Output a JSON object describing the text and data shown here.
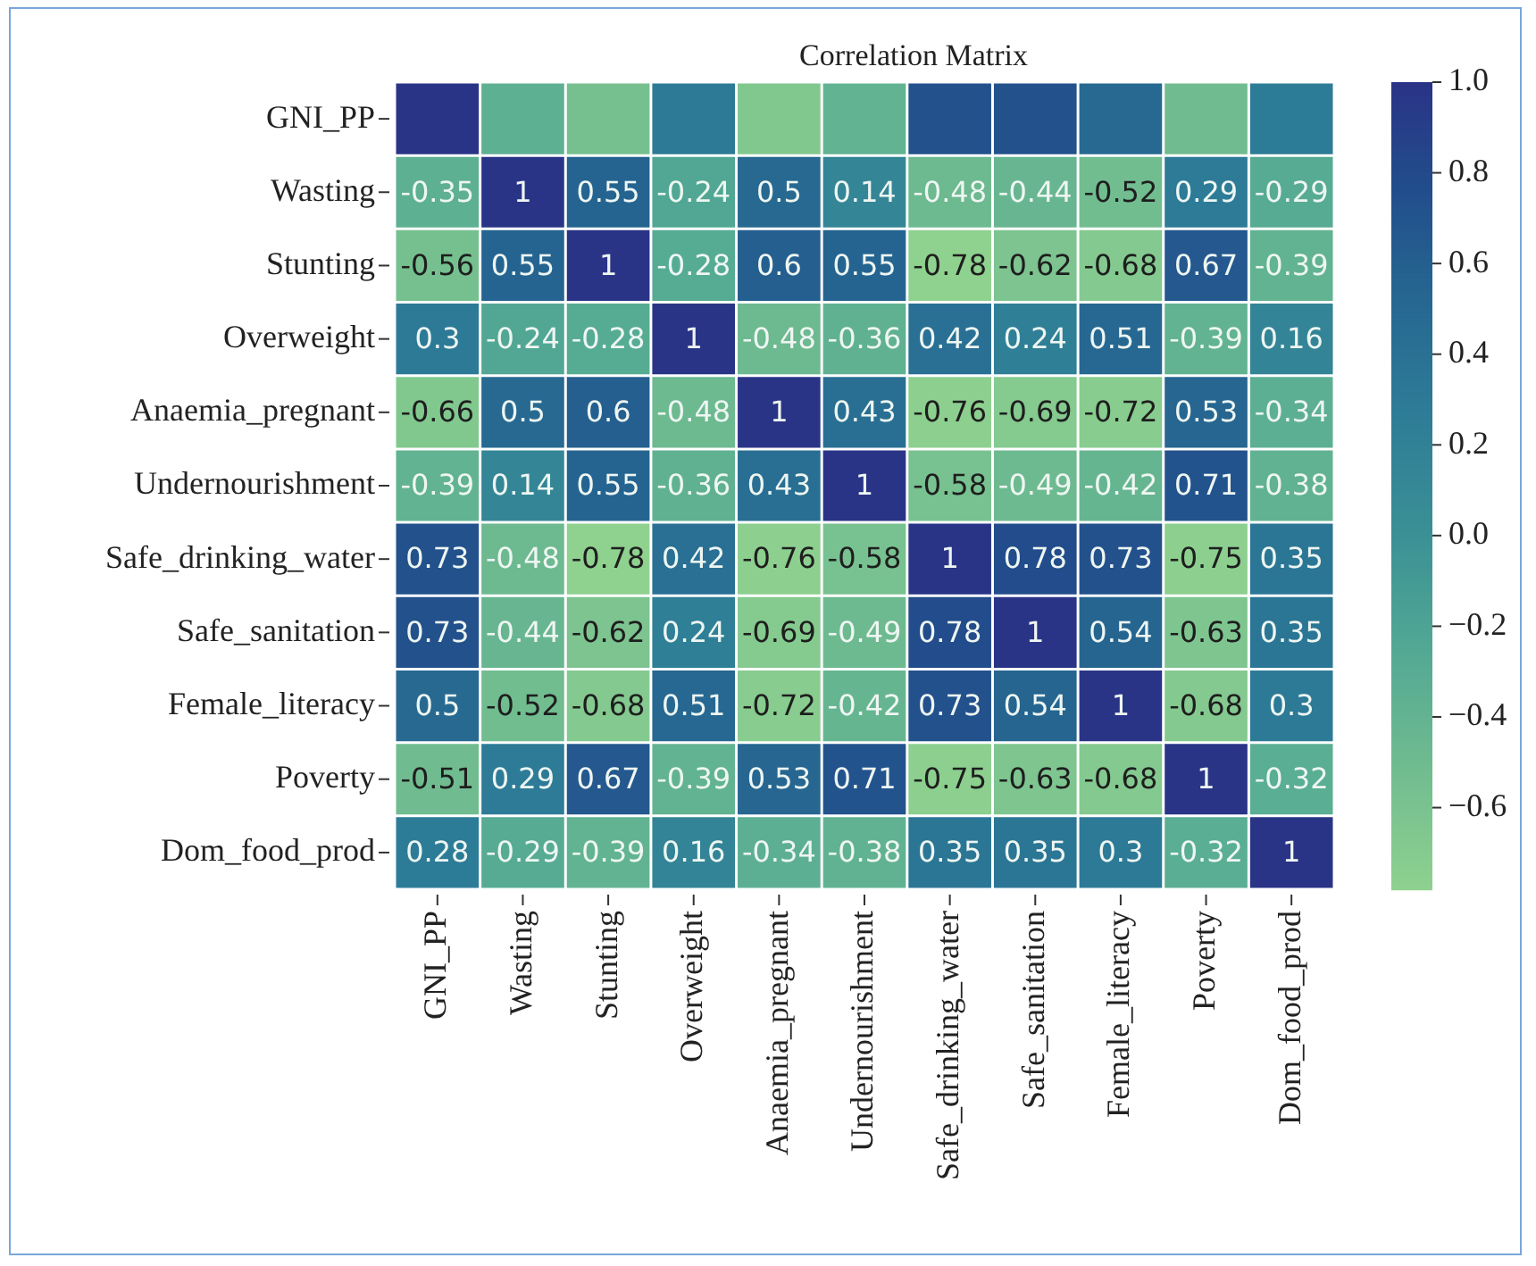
{
  "chart_data": {
    "type": "heatmap",
    "title": "Correlation Matrix",
    "categories": [
      "GNI_PP",
      "Wasting",
      "Stunting",
      "Overweight",
      "Anaemia_pregnant",
      "Undernourishment",
      "Safe_drinking_water",
      "Safe_sanitation",
      "Female_literacy",
      "Poverty",
      "Dom_food_prod"
    ],
    "y_categories": [
      "GNI_PP",
      "Wasting",
      "Stunting",
      "Overweight",
      "Anaemia_pregnant",
      "Undernourishment",
      "Safe_drinking_water",
      "Safe_sanitation",
      "Female_literacy",
      "Poverty",
      "Dom_food_prod"
    ],
    "cells": [
      [
        1,
        -0.35,
        -0.56,
        0.3,
        -0.66,
        -0.39,
        0.73,
        0.73,
        0.5,
        -0.51,
        0.28
      ],
      [
        -0.35,
        1,
        0.55,
        -0.24,
        0.5,
        0.14,
        -0.48,
        -0.44,
        -0.52,
        0.29,
        -0.29
      ],
      [
        -0.56,
        0.55,
        1,
        -0.28,
        0.6,
        0.55,
        -0.78,
        -0.62,
        -0.68,
        0.67,
        -0.39
      ],
      [
        0.3,
        -0.24,
        -0.28,
        1,
        -0.48,
        -0.36,
        0.42,
        0.24,
        0.51,
        -0.39,
        0.16
      ],
      [
        -0.66,
        0.5,
        0.6,
        -0.48,
        1,
        0.43,
        -0.76,
        -0.69,
        -0.72,
        0.53,
        -0.34
      ],
      [
        -0.39,
        0.14,
        0.55,
        -0.36,
        0.43,
        1,
        -0.58,
        -0.49,
        -0.42,
        0.71,
        -0.38
      ],
      [
        0.73,
        -0.48,
        -0.78,
        0.42,
        -0.76,
        -0.58,
        1,
        0.78,
        0.73,
        -0.75,
        0.35
      ],
      [
        0.73,
        -0.44,
        -0.62,
        0.24,
        -0.69,
        -0.49,
        0.78,
        1,
        0.54,
        -0.63,
        0.35
      ],
      [
        0.5,
        -0.52,
        -0.68,
        0.51,
        -0.72,
        -0.42,
        0.73,
        0.54,
        1,
        -0.68,
        0.3
      ],
      [
        -0.51,
        0.29,
        0.67,
        -0.39,
        0.53,
        0.71,
        -0.75,
        -0.63,
        -0.68,
        1,
        -0.32
      ],
      [
        0.28,
        -0.29,
        -0.39,
        0.16,
        -0.34,
        -0.38,
        0.35,
        0.35,
        0.3,
        -0.32,
        1
      ]
    ],
    "cell_labels": [
      [
        null,
        null,
        null,
        null,
        null,
        null,
        null,
        null,
        null,
        null,
        null
      ],
      [
        "-0.35",
        "1",
        "0.55",
        "-0.24",
        "0.5",
        "0.14",
        "-0.48",
        "-0.44",
        "-0.52",
        "0.29",
        "-0.29"
      ],
      [
        "-0.56",
        "0.55",
        "1",
        "-0.28",
        "0.6",
        "0.55",
        "-0.78",
        "-0.62",
        "-0.68",
        "0.67",
        "-0.39"
      ],
      [
        "0.3",
        "-0.24",
        "-0.28",
        "1",
        "-0.48",
        "-0.36",
        "0.42",
        "0.24",
        "0.51",
        "-0.39",
        "0.16"
      ],
      [
        "-0.66",
        "0.5",
        "0.6",
        "-0.48",
        "1",
        "0.43",
        "-0.76",
        "-0.69",
        "-0.72",
        "0.53",
        "-0.34"
      ],
      [
        "-0.39",
        "0.14",
        "0.55",
        "-0.36",
        "0.43",
        "1",
        "-0.58",
        "-0.49",
        "-0.42",
        "0.71",
        "-0.38"
      ],
      [
        "0.73",
        "-0.48",
        "-0.78",
        "0.42",
        "-0.76",
        "-0.58",
        "1",
        "0.78",
        "0.73",
        "-0.75",
        "0.35"
      ],
      [
        "0.73",
        "-0.44",
        "-0.62",
        "0.24",
        "-0.69",
        "-0.49",
        "0.78",
        "1",
        "0.54",
        "-0.63",
        "0.35"
      ],
      [
        "0.5",
        "-0.52",
        "-0.68",
        "0.51",
        "-0.72",
        "-0.42",
        "0.73",
        "0.54",
        "1",
        "-0.68",
        "0.3"
      ],
      [
        "-0.51",
        "0.29",
        "0.67",
        "-0.39",
        "0.53",
        "0.71",
        "-0.75",
        "-0.63",
        "-0.68",
        "1",
        "-0.32"
      ],
      [
        "0.28",
        "-0.29",
        "-0.39",
        "0.16",
        "-0.34",
        "-0.38",
        "0.35",
        "0.35",
        "0.3",
        "-0.32",
        "1"
      ]
    ],
    "clim": [
      -0.78,
      1
    ],
    "cticks": [
      {
        "value": 1,
        "label": "1.0"
      },
      {
        "value": 0.8,
        "label": "0.8"
      },
      {
        "value": 0.6,
        "label": "0.6"
      },
      {
        "value": 0.4,
        "label": "0.4"
      },
      {
        "value": 0.2,
        "label": "0.2"
      },
      {
        "value": 0,
        "label": "0.0"
      },
      {
        "value": -0.2,
        "label": "−0.2"
      },
      {
        "value": -0.4,
        "label": "−0.4"
      },
      {
        "value": -0.6,
        "label": "−0.6"
      }
    ]
  }
}
